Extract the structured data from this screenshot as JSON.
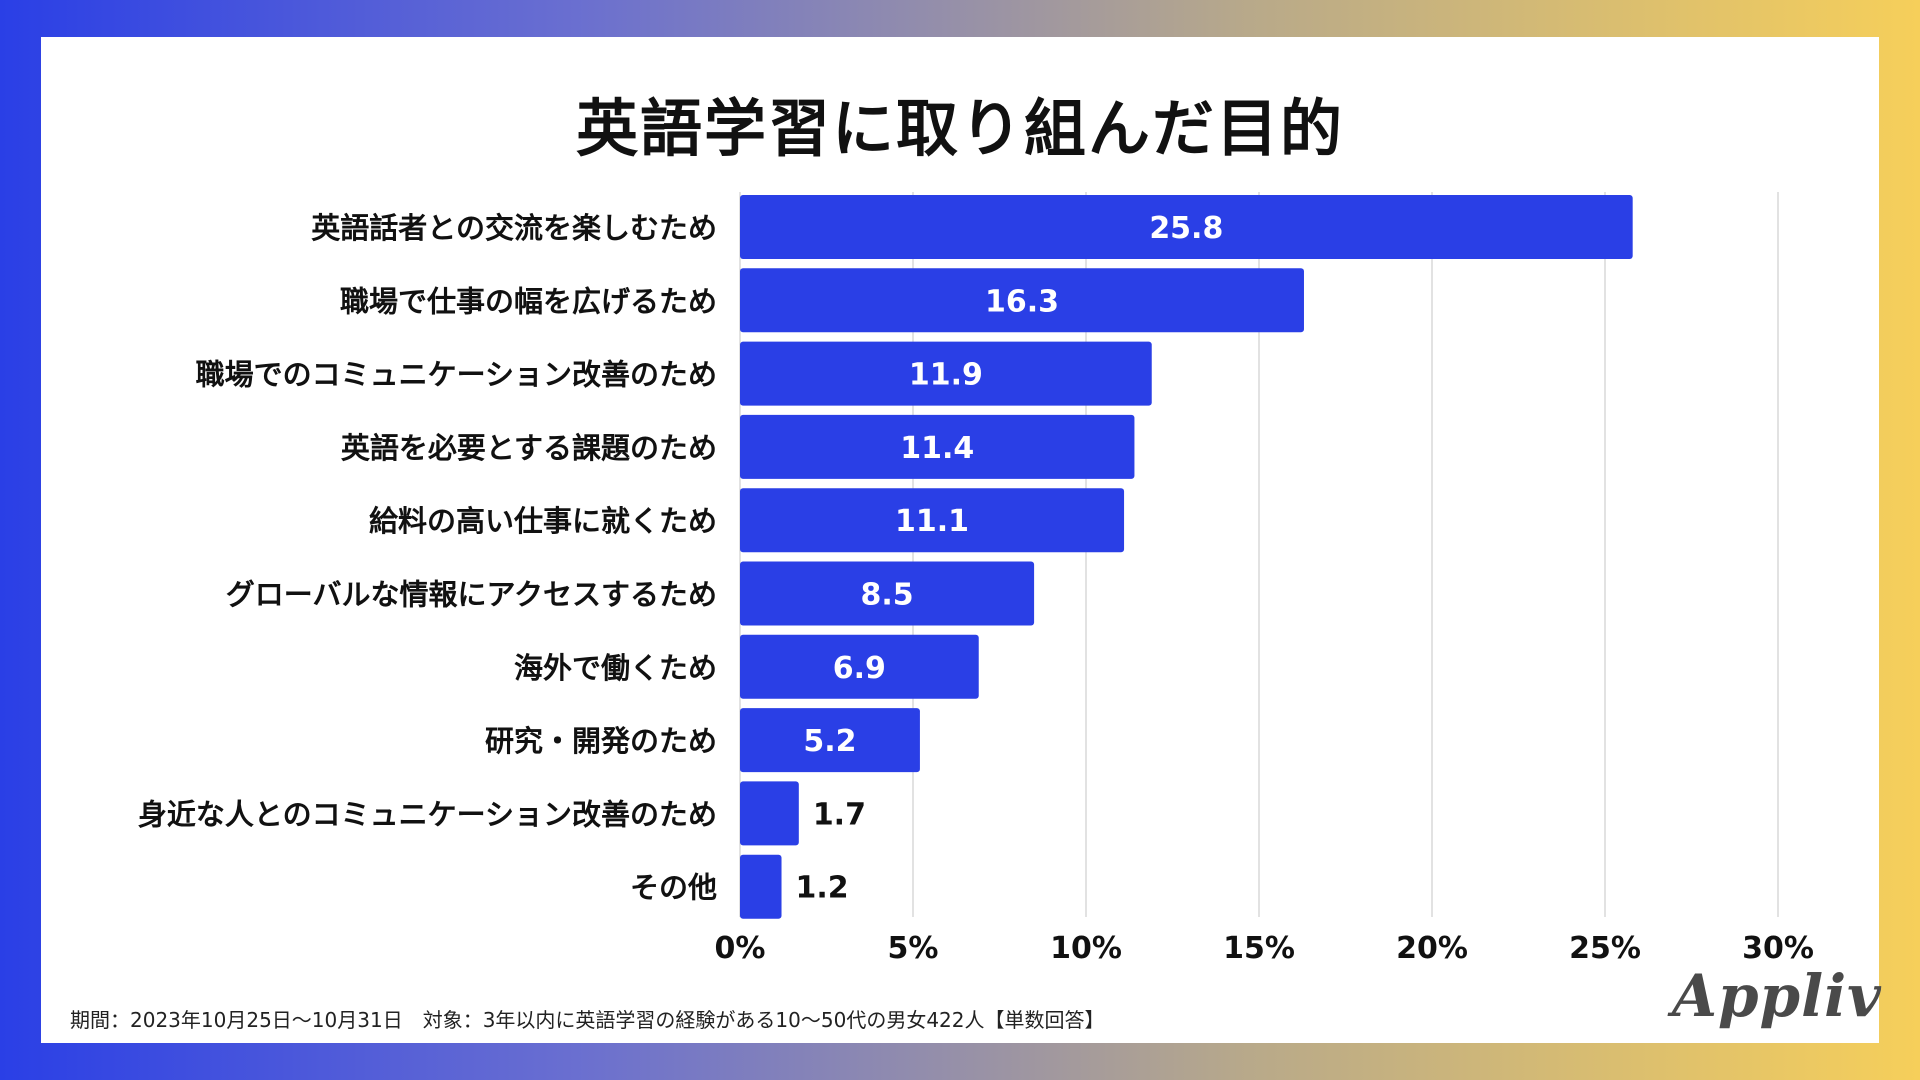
{
  "chart_data": {
    "type": "bar",
    "orientation": "horizontal",
    "title": "英語学習に取り組んだ目的",
    "categories": [
      "英語話者との交流を楽しむため",
      "職場で仕事の幅を広げるため",
      "職場でのコミュニケーション改善のため",
      "英語を必要とする課題のため",
      "給料の高い仕事に就くため",
      "グローバルな情報にアクセスするため",
      "海外で働くため",
      "研究・開発のため",
      "身近な人とのコミュニケーション改善のため",
      "その他"
    ],
    "values": [
      25.8,
      16.3,
      11.9,
      11.4,
      11.1,
      8.5,
      6.9,
      5.2,
      1.7,
      1.2
    ],
    "value_labels": [
      "25.8",
      "16.3",
      "11.9",
      "11.4",
      "11.1",
      "8.5",
      "6.9",
      "5.2",
      "1.7",
      "1.2"
    ],
    "xlim": [
      0,
      30
    ],
    "xticks": [
      0,
      5,
      10,
      15,
      20,
      25,
      30
    ],
    "xtick_labels": [
      "0%",
      "5%",
      "10%",
      "15%",
      "20%",
      "25%",
      "30%"
    ],
    "grid": true,
    "bar_color": "#2a3fe6"
  },
  "footnote": "期間：2023年10月25日〜10月31日　対象：3年以内に英語学習の経験がある10〜50代の男女422人【単数回答】",
  "logo": "Appliv",
  "colors": {
    "bar": "#2a3fe6",
    "grid": "#d9d9d9",
    "text": "#111111"
  }
}
